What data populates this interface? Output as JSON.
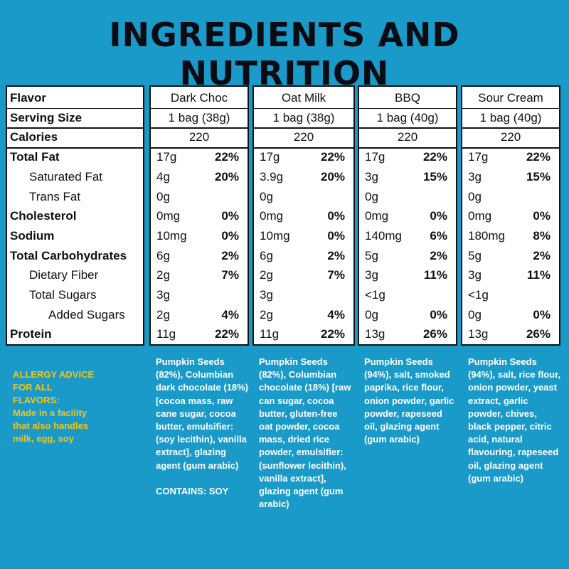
{
  "title": "INGREDIENTS AND NUTRITION",
  "table": {
    "columns": [
      "Dark Choc",
      "Oat Milk",
      "BBQ",
      "Sour Cream"
    ],
    "rows": [
      {
        "label": "Flavor",
        "bold": true,
        "indent": 0
      },
      {
        "label": "Serving Size",
        "bold": true,
        "indent": 0,
        "values": [
          "1 bag (38g)",
          "1 bag (38g)",
          "1 bag (40g)",
          "1 bag (40g)"
        ]
      },
      {
        "label": "Calories",
        "bold": true,
        "indent": 0,
        "values": [
          "220",
          "220",
          "220",
          "220"
        ]
      },
      {
        "label": "Total Fat",
        "bold": true,
        "indent": 0,
        "amounts": [
          "17g",
          "17g",
          "17g",
          "17g"
        ],
        "percents": [
          "22%",
          "22%",
          "22%",
          "22%"
        ]
      },
      {
        "label": "Saturated Fat",
        "bold": false,
        "indent": 1,
        "amounts": [
          "4g",
          "3.9g",
          "3g",
          "3g"
        ],
        "percents": [
          "20%",
          "20%",
          "15%",
          "15%"
        ]
      },
      {
        "label": "Trans Fat",
        "bold": false,
        "indent": 1,
        "amounts": [
          "0g",
          "0g",
          "0g",
          "0g"
        ],
        "percents": [
          "",
          "",
          "",
          ""
        ]
      },
      {
        "label": "Cholesterol",
        "bold": true,
        "indent": 0,
        "amounts": [
          "0mg",
          "0mg",
          "0mg",
          "0mg"
        ],
        "percents": [
          "0%",
          "0%",
          "0%",
          "0%"
        ]
      },
      {
        "label": "Sodium",
        "bold": true,
        "indent": 0,
        "amounts": [
          "10mg",
          "10mg",
          "140mg",
          "180mg"
        ],
        "percents": [
          "0%",
          "0%",
          "6%",
          "8%"
        ]
      },
      {
        "label": "Total Carbohydrates",
        "bold": true,
        "indent": 0,
        "amounts": [
          "6g",
          "6g",
          "5g",
          "5g"
        ],
        "percents": [
          "2%",
          "2%",
          "2%",
          "2%"
        ]
      },
      {
        "label": "Dietary Fiber",
        "bold": false,
        "indent": 1,
        "amounts": [
          "2g",
          "2g",
          "3g",
          "3g"
        ],
        "percents": [
          "7%",
          "7%",
          "11%",
          "11%"
        ]
      },
      {
        "label": "Total Sugars",
        "bold": false,
        "indent": 1,
        "amounts": [
          "3g",
          "3g",
          "<1g",
          "<1g"
        ],
        "percents": [
          "",
          "",
          "",
          ""
        ]
      },
      {
        "label": "Added Sugars",
        "bold": false,
        "indent": 2,
        "amounts": [
          "2g",
          "2g",
          "0g",
          "0g"
        ],
        "percents": [
          "4%",
          "4%",
          "0%",
          "0%"
        ]
      },
      {
        "label": "Protein",
        "bold": true,
        "indent": 0,
        "amounts": [
          "11g",
          "11g",
          "13g",
          "13g"
        ],
        "percents": [
          "22%",
          "22%",
          "26%",
          "26%"
        ]
      }
    ]
  },
  "allergy": {
    "line1": "ALLERGY ADVICE",
    "line2": "FOR ALL",
    "line3": "FLAVORS:",
    "line4": "Made in a facility",
    "line5": "that also handles",
    "line6": "milk, egg, soy"
  },
  "ingredients": {
    "dark_choc": "Pumpkin Seeds (82%), Columbian dark chocolate (18%) [cocoa mass, raw cane sugar, cocoa butter, emulsifier: (soy lecithin), vanilla extract], glazing agent (gum arabic)",
    "dark_choc_contains": "CONTAINS: SOY",
    "oat_milk": "Pumpkin Seeds (82%), Columbian chocolate (18%) [raw can sugar, cocoa butter, gluten-free oat powder, cocoa mass, dried rice powder, emulsifier: (sunflower lecithin), vanilla extract], glazing agent (gum arabic)",
    "bbq": "Pumpkin Seeds (94%), salt, smoked paprika, rice flour, onion powder, garlic powder, rapeseed oil, glazing agent (gum arabic)",
    "sour_cream": "Pumpkin Seeds (94%), salt, rice flour, onion powder, yeast extract, garlic powder, chives, black pepper, citric acid, natural flavouring, rapeseed oil, glazing agent (gum arabic)"
  }
}
